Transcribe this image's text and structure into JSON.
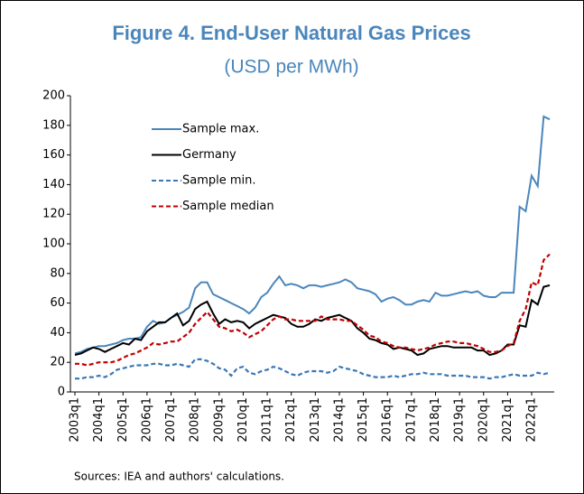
{
  "chart_data": {
    "type": "line",
    "title": "Figure 4. End-User Natural Gas Prices",
    "subtitle": "(USD per MWh)",
    "source": "Sources: IEA and authors' calculations.",
    "categories": [
      "2003q1",
      null,
      null,
      null,
      "2004q1",
      null,
      null,
      null,
      "2005q1",
      null,
      null,
      null,
      "2006q1",
      null,
      null,
      null,
      "2007q1",
      null,
      null,
      null,
      "2008q1",
      null,
      null,
      null,
      "2009q1",
      null,
      null,
      null,
      "2010q1",
      null,
      null,
      null,
      "2011q1",
      null,
      null,
      null,
      "2012q1",
      null,
      null,
      null,
      "2013q1",
      null,
      null,
      null,
      "2014q1",
      null,
      null,
      null,
      "2015q1",
      null,
      null,
      null,
      "2016q1",
      null,
      null,
      null,
      "2017q1",
      null,
      null,
      null,
      "2018q1",
      null,
      null,
      null,
      "2019q1",
      null,
      null,
      null,
      "2020q1",
      null,
      null,
      null,
      "2021q1",
      null,
      null,
      null,
      "2022q1",
      null,
      null,
      null
    ],
    "series": [
      {
        "name": "Sample max.",
        "color": "#4a86bb",
        "dashed": false,
        "values": [
          26,
          27,
          29,
          30,
          31,
          31,
          32,
          33,
          35,
          36,
          36,
          37,
          44,
          48,
          46,
          47,
          50,
          52,
          54,
          57,
          70,
          74,
          74,
          66,
          64,
          62,
          60,
          58,
          56,
          53,
          57,
          64,
          67,
          73,
          78,
          72,
          73,
          72,
          70,
          72,
          72,
          71,
          72,
          73,
          74,
          76,
          74,
          70,
          69,
          68,
          66,
          61,
          63,
          64,
          62,
          59,
          59,
          61,
          62,
          61,
          67,
          65,
          65,
          66,
          67,
          68,
          67,
          68,
          65,
          64,
          64,
          67,
          67,
          67,
          125,
          122,
          146,
          139,
          186,
          184
        ]
      },
      {
        "name": "Germany",
        "color": "#000000",
        "dashed": false,
        "values": [
          25,
          26,
          28,
          30,
          29,
          27,
          29,
          31,
          33,
          32,
          36,
          35,
          41,
          44,
          47,
          47,
          50,
          53,
          45,
          48,
          56,
          59,
          61,
          53,
          46,
          49,
          47,
          48,
          47,
          43,
          46,
          48,
          50,
          52,
          51,
          50,
          46,
          44,
          44,
          46,
          49,
          48,
          50,
          51,
          52,
          50,
          48,
          43,
          40,
          36,
          35,
          33,
          32,
          29,
          30,
          29,
          28,
          25,
          26,
          29,
          30,
          31,
          31,
          30,
          30,
          30,
          30,
          28,
          28,
          25,
          26,
          28,
          32,
          32,
          45,
          44,
          62,
          59,
          71,
          72
        ]
      },
      {
        "name": "Sample min.",
        "color": "#3a78b5",
        "dashed": true,
        "values": [
          9,
          9,
          10,
          10,
          11,
          10,
          12,
          15,
          16,
          17,
          18,
          18,
          18,
          19,
          19,
          18,
          18,
          19,
          18,
          17,
          22,
          22,
          21,
          19,
          16,
          15,
          11,
          16,
          17,
          13,
          12,
          14,
          15,
          17,
          16,
          14,
          12,
          11,
          13,
          14,
          14,
          14,
          13,
          14,
          17,
          16,
          15,
          14,
          12,
          11,
          10,
          10,
          10,
          11,
          10,
          11,
          12,
          12,
          13,
          12,
          12,
          12,
          11,
          11,
          11,
          11,
          10,
          10,
          10,
          9,
          10,
          10,
          11,
          12,
          11,
          11,
          11,
          13,
          12,
          13
        ]
      },
      {
        "name": "Sample median",
        "color": "#c00000",
        "dashed": true,
        "values": [
          19,
          19,
          18,
          19,
          20,
          20,
          20,
          21,
          23,
          25,
          26,
          28,
          30,
          33,
          32,
          33,
          34,
          34,
          37,
          40,
          46,
          50,
          54,
          49,
          44,
          43,
          41,
          42,
          40,
          37,
          39,
          41,
          45,
          49,
          51,
          49,
          49,
          48,
          48,
          48,
          48,
          51,
          49,
          49,
          49,
          48,
          48,
          45,
          42,
          38,
          37,
          34,
          33,
          31,
          30,
          30,
          29,
          28,
          29,
          30,
          32,
          33,
          34,
          34,
          33,
          33,
          32,
          31,
          29,
          27,
          27,
          28,
          31,
          33,
          48,
          56,
          74,
          72,
          89,
          93
        ]
      }
    ],
    "ylim": [
      0,
      200
    ],
    "yticks": [
      0,
      20,
      40,
      60,
      80,
      100,
      120,
      140,
      160,
      180,
      200
    ],
    "grid": false
  }
}
